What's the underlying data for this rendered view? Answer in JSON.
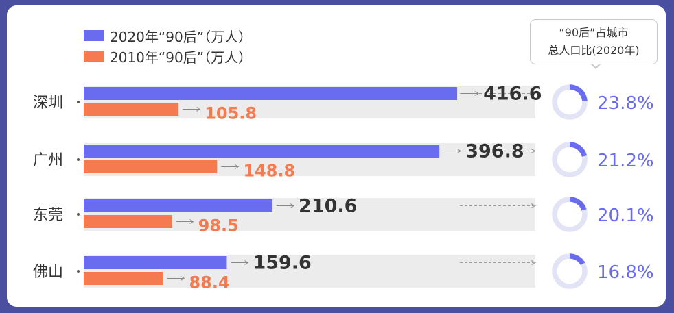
{
  "colors": {
    "series_2020": "#6a6cf0",
    "series_2010": "#f57a4f",
    "track": "#ececec",
    "value_2020": "#333333",
    "value_2010": "#f57a4f",
    "percent": "#6a6cf0",
    "ring_bg": "#e2e4f6",
    "ring_fg": "#6a6cf0",
    "frame": "#4a4fa0"
  },
  "legend": [
    {
      "label": "2020年“90后”（万人）",
      "color": "#6a6cf0"
    },
    {
      "label": "2010年“90后”（万人）",
      "color": "#f57a4f"
    }
  ],
  "callout": {
    "line1": "“90后”占城市",
    "line2": "总人口比(2020年)"
  },
  "chart_data": {
    "type": "bar",
    "orientation": "horizontal",
    "categories": [
      "深圳",
      "广州",
      "东莞",
      "佛山"
    ],
    "series": [
      {
        "name": "2020年“90后”（万人）",
        "values": [
          416.6,
          396.8,
          210.6,
          159.6
        ]
      },
      {
        "name": "2010年“90后”（万人）",
        "values": [
          105.8,
          148.8,
          98.5,
          88.4
        ]
      }
    ],
    "value_labels_2020": [
      "416.6",
      "396.8",
      "210.6",
      "159.6"
    ],
    "value_labels_2010": [
      "105.8",
      "148.8",
      "98.5",
      "88.4"
    ],
    "share_2020_percent": [
      23.8,
      21.2,
      20.1,
      16.8
    ],
    "share_labels": [
      "23.8%",
      "21.2%",
      "20.1%",
      "16.8%"
    ],
    "legend_position": "top-left",
    "grid": false
  }
}
